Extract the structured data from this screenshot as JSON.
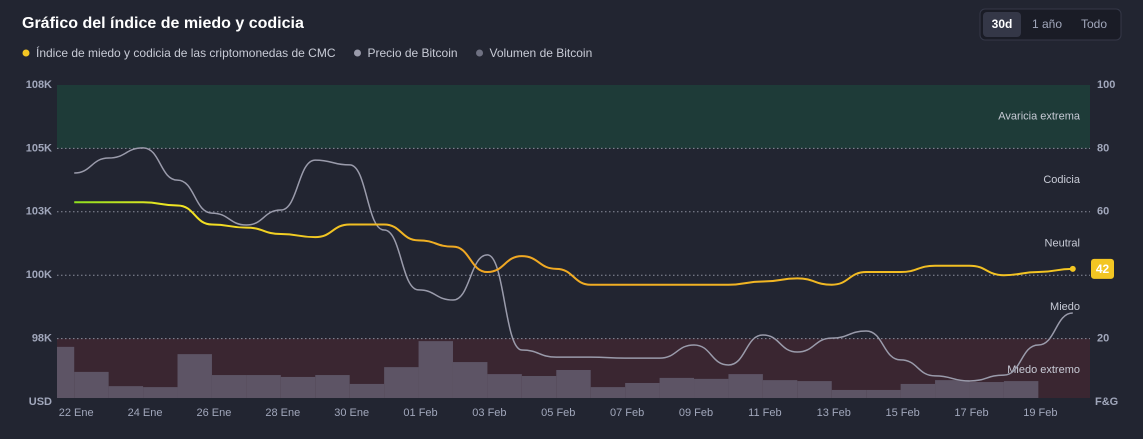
{
  "chart_data": {
    "type": "line",
    "title": "Gráfico del índice de miedo y codicia",
    "buttons": [
      "30d",
      "1 año",
      "Todo"
    ],
    "active_button": 0,
    "categories": [
      "22 Ene",
      null,
      "24 Ene",
      null,
      "26 Ene",
      null,
      "28 Ene",
      null,
      "30 Ene",
      null,
      "01 Feb",
      null,
      "03 Feb",
      null,
      "05 Feb",
      null,
      "07 Feb",
      null,
      "09 Feb",
      null,
      "11 Feb",
      null,
      "13 Feb",
      null,
      "15 Feb",
      null,
      "17 Feb",
      null,
      "19 Feb",
      null
    ],
    "ylim": [
      95100,
      107600
    ],
    "yticks": [
      {
        "value": 97600,
        "label": "98K"
      },
      {
        "value": 100100,
        "label": "100K"
      },
      {
        "value": 102600,
        "label": "103K"
      },
      {
        "value": 105100,
        "label": "105K"
      },
      {
        "value": 107600,
        "label": "108K"
      }
    ],
    "y_label": "USD",
    "y2lim": [
      0,
      100
    ],
    "y2ticks": [
      20,
      40,
      60,
      80,
      100
    ],
    "y2_label": "F&G",
    "zones": [
      {
        "name": "Avaricia extrema",
        "range": [
          80,
          100
        ],
        "color": "#1e3b38"
      },
      {
        "name": "Codicia",
        "range": [
          60,
          80
        ]
      },
      {
        "name": "Neutral",
        "range": [
          40,
          60
        ]
      },
      {
        "name": "Miedo",
        "range": [
          20,
          40
        ]
      },
      {
        "name": "Miedo extremo",
        "range": [
          0,
          20
        ],
        "color": "#3a2631"
      }
    ],
    "series": [
      {
        "name": "Índice de miedo y codicia de las criptomonedas de CMC",
        "color": "#f3c623",
        "axis": "y2",
        "values": [
          63,
          63,
          63,
          62,
          56,
          55,
          53,
          52,
          56,
          56,
          51,
          49,
          41,
          46,
          42,
          37,
          37,
          37,
          37,
          37,
          38,
          39,
          37,
          41,
          41,
          43,
          43,
          40,
          41,
          42
        ]
      },
      {
        "name": "Precio de Bitcoin",
        "color": "#9a9bab",
        "axis": "y",
        "values": [
          104130,
          104720,
          105120,
          103850,
          102550,
          102080,
          102670,
          104640,
          104450,
          101880,
          99520,
          99120,
          100900,
          97150,
          96870,
          96870,
          96830,
          96830,
          97350,
          96560,
          97740,
          97070,
          97620,
          97900,
          96760,
          96130,
          95930,
          96160,
          97350,
          98610
        ]
      },
      {
        "name": "Volumen de Bitcoin",
        "color": "#5d5465",
        "legend_color": "#6f7182",
        "axis": "y2",
        "type": "bar",
        "values": [
          17.4,
          9.5,
          5,
          4.7,
          15.1,
          8.5,
          8.5,
          7.9,
          8.5,
          5.7,
          11,
          19.2,
          12.6,
          8.8,
          8.2,
          10.1,
          4.7,
          6,
          7.6,
          7.3,
          8.8,
          6.9,
          6.6,
          3.8,
          3.8,
          5.7,
          6.9,
          6.3,
          6.6,
          null
        ]
      }
    ]
  }
}
